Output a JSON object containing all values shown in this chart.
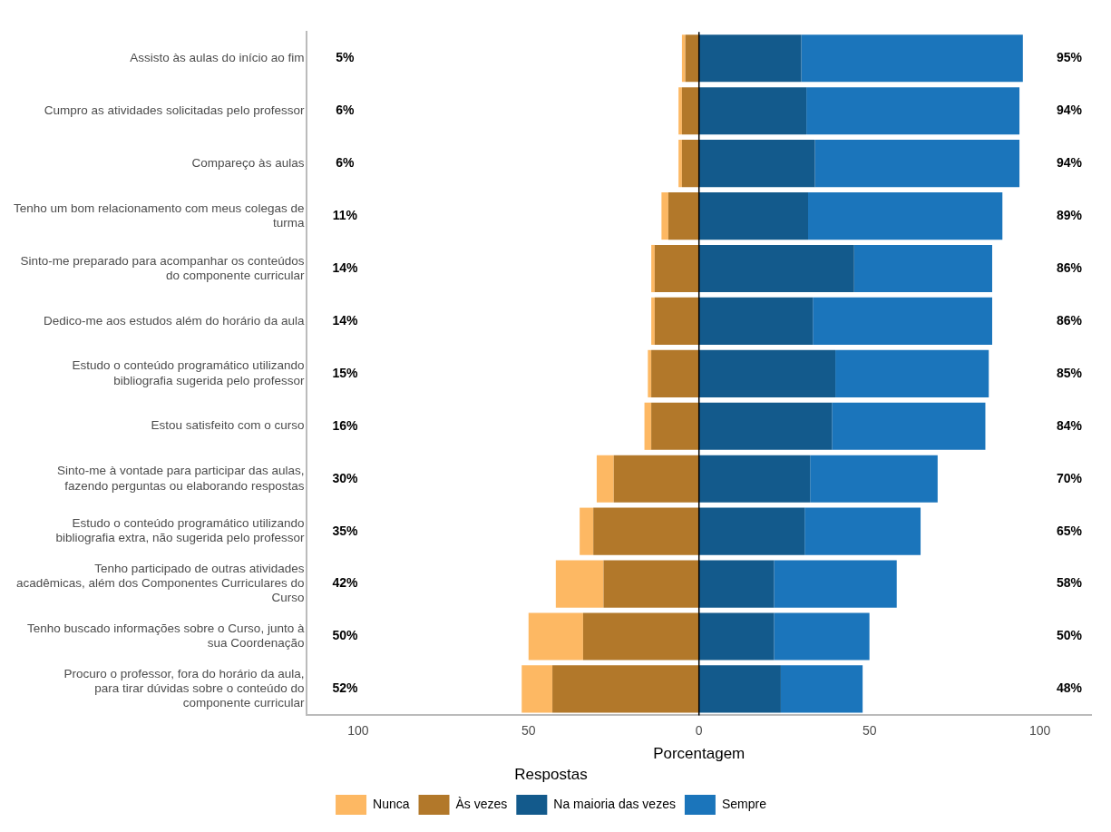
{
  "chart_data": {
    "type": "bar",
    "orientation": "horizontal",
    "stacked": true,
    "xlabel": "Porcentagem",
    "legend_title": "Respostas",
    "legend": "bottom",
    "grid": false,
    "categories": [
      "Assisto às aulas do início ao fim",
      "Cumpro as atividades solicitadas pelo professor",
      "Compareço às aulas",
      "Tenho um bom relacionamento com meus colegas de turma",
      "Sinto-me preparado para acompanhar os conteúdos do componente curricular",
      "Dedico-me aos estudos além do horário da aula",
      "Estudo o conteúdo programático utilizando bibliografia sugerida pelo professor",
      "Estou satisfeito com o curso",
      "Sinto-me à vontade para participar das aulas, fazendo perguntas ou elaborando respostas",
      "Estudo o conteúdo programático utilizando bibliografia extra, não sugerida pelo professor",
      "Tenho participado de outras atividades acadêmicas, além dos Componentes Curriculares do Curso",
      "Tenho buscado informações sobre o Curso, junto à sua Coordenação",
      "Procuro o professor, fora do horário da aula, para tirar dúvidas sobre o conteúdo do componente curricular"
    ],
    "series": [
      {
        "name": "Às vezes",
        "color": "#b2782a",
        "values": [
          -4,
          -5,
          -5,
          -9,
          -13,
          -13,
          -14,
          -14,
          -25,
          -31,
          -28,
          -34,
          -43
        ]
      },
      {
        "name": "Nunca",
        "color": "#fdb863",
        "values": [
          -1,
          -1,
          -1,
          -2,
          -1,
          -1,
          -1,
          -2,
          -5,
          -4,
          -14,
          -16,
          -9
        ]
      },
      {
        "name": "Na maioria das vezes",
        "color": "#135a8c",
        "values": [
          30,
          31.5,
          34,
          32,
          45.5,
          33.4,
          40,
          39,
          32.6,
          31,
          22,
          22,
          24
        ]
      },
      {
        "name": "Sempre",
        "color": "#1b75bb",
        "values": [
          65,
          62.5,
          60,
          57,
          40.5,
          52.6,
          45,
          45,
          37.4,
          34,
          36,
          28,
          24
        ]
      }
    ],
    "xlim": [
      -115,
      115
    ],
    "xticks": [
      {
        "value": -100,
        "label": "100"
      },
      {
        "value": -50,
        "label": "50"
      },
      0,
      50,
      100
    ],
    "ref_lines": [
      {
        "axis": "x",
        "value": 0,
        "color": "#000000"
      }
    ],
    "totals": [
      [
        "5%",
        "95%"
      ],
      [
        "6%",
        "94%"
      ],
      [
        "6%",
        "94%"
      ],
      [
        "11%",
        "89%"
      ],
      [
        "14%",
        "86%"
      ],
      [
        "14%",
        "86%"
      ],
      [
        "15%",
        "85%"
      ],
      [
        "16%",
        "84%"
      ],
      [
        "30%",
        "70%"
      ],
      [
        "35%",
        "65%"
      ],
      [
        "42%",
        "58%"
      ],
      [
        "50%",
        "50%"
      ],
      [
        "52%",
        "48%"
      ]
    ]
  }
}
